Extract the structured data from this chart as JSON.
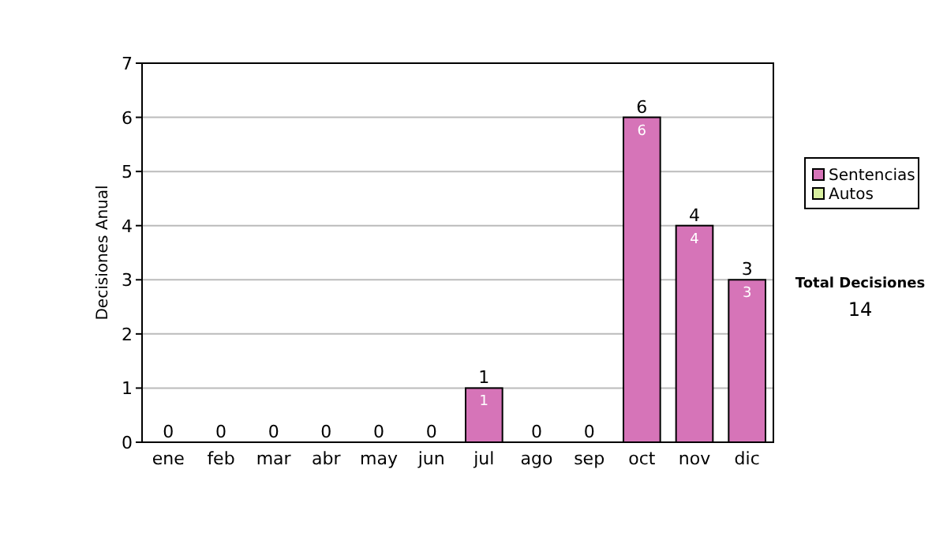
{
  "chart_data": {
    "type": "bar",
    "ylabel": "Decisiones Anual",
    "categories": [
      "ene",
      "feb",
      "mar",
      "abr",
      "may",
      "jun",
      "jul",
      "ago",
      "sep",
      "oct",
      "nov",
      "dic"
    ],
    "stacked": true,
    "series": [
      {
        "name": "Sentencias",
        "color": "#d674b8",
        "values": [
          0,
          0,
          0,
          0,
          0,
          0,
          1,
          0,
          0,
          6,
          4,
          3
        ],
        "value_labels": [
          null,
          null,
          null,
          null,
          null,
          null,
          "1",
          null,
          null,
          "6",
          "4",
          "3"
        ]
      },
      {
        "name": "Autos",
        "color": "#d9f0a0",
        "values": [
          0,
          0,
          0,
          0,
          0,
          0,
          0,
          0,
          0,
          0,
          0,
          0
        ]
      }
    ],
    "totals": [
      "0",
      "0",
      "0",
      "0",
      "0",
      "0",
      "1",
      "0",
      "0",
      "6",
      "4",
      "3"
    ],
    "ylim": [
      0,
      7
    ],
    "yticks": [
      0,
      1,
      2,
      3,
      4,
      5,
      6,
      7
    ],
    "grid": "y",
    "legend": "right",
    "annotations": [
      "Total Decisiones",
      "14"
    ]
  }
}
